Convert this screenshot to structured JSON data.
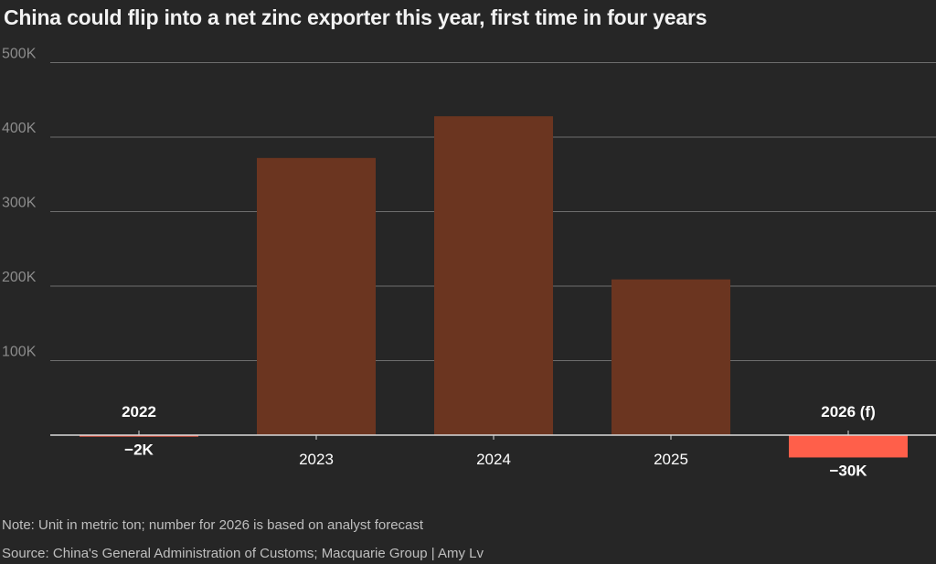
{
  "title": "China could flip into a net zinc exporter this year, first time in four years",
  "note": "Note: Unit in metric ton; number for 2026 is based on analyst forecast",
  "source": "Source: China's General Administration of Customs; Macquarie Group | Amy Lv",
  "colors": {
    "background": "#262626",
    "positive_bar": "#6b3520",
    "negative_bar": "#ff5f4a",
    "gridline": "#6e6e6e",
    "axis": "#d9d9d9",
    "tick_text": "#8c8c8c"
  },
  "chart_data": {
    "type": "bar",
    "title": "China could flip into a net zinc exporter this year, first time in four years",
    "xlabel": "",
    "ylabel": "",
    "categories": [
      "2022",
      "2023",
      "2024",
      "2025",
      "2026 (f)"
    ],
    "values": [
      -2000,
      372000,
      428000,
      209000,
      -30000
    ],
    "data_labels": [
      "−2K",
      "",
      "",
      "",
      "−30K"
    ],
    "yticks": [
      100000,
      200000,
      300000,
      400000,
      500000
    ],
    "ytick_labels": [
      "100K",
      "200K",
      "300K",
      "400K",
      "500K"
    ],
    "ylim": [
      -30000,
      500000
    ],
    "grid": true,
    "legend": "none"
  }
}
